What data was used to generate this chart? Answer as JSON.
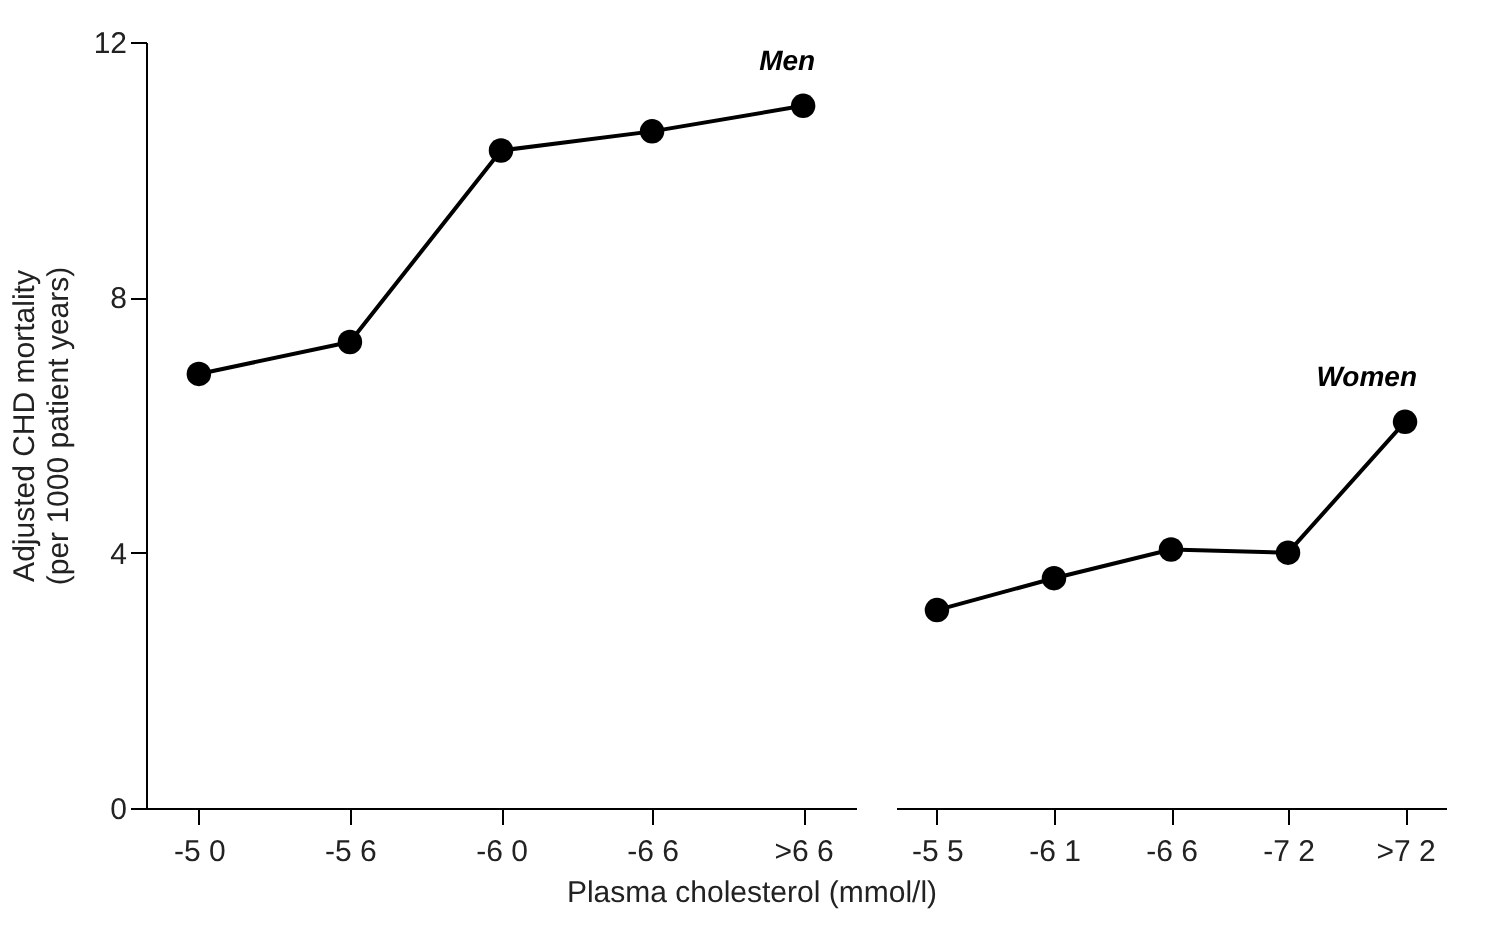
{
  "chart_data": [
    {
      "type": "line",
      "ylabel": "Adjusted CHD mortality\n(per 1000 patient years)",
      "xlabel": "Plasma cholesterol (mmol/l)",
      "categories": [
        "-5 0",
        "-5 6",
        "-6 0",
        "-6 6",
        ">6 6"
      ],
      "series": [
        {
          "name": "Men",
          "color": "#000000",
          "values": [
            6.8,
            7.3,
            10.3,
            10.6,
            11.0
          ]
        }
      ],
      "ylim": [
        0,
        12
      ],
      "yticks": [
        0,
        4,
        8,
        12
      ],
      "marker": "circle",
      "line_style": "solid",
      "grid": false,
      "legend": false
    },
    {
      "type": "line",
      "categories": [
        "-5 5",
        "-6 1",
        "-6 6",
        "-7 2",
        ">7 2"
      ],
      "series": [
        {
          "name": "Women",
          "color": "#000000",
          "values": [
            3.1,
            3.6,
            4.05,
            4.0,
            6.05
          ]
        }
      ],
      "ylim": [
        0,
        12
      ],
      "yticks": [
        0,
        4,
        8,
        12
      ],
      "tick_labels": "x",
      "marker": "circle",
      "line_style": "solid",
      "grid": false,
      "legend": false
    }
  ]
}
